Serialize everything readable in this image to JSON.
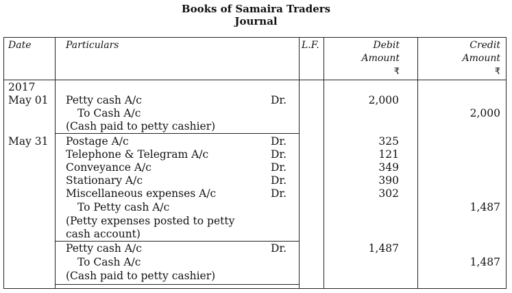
{
  "title": "Books of Samaira Traders",
  "subtitle": "Journal",
  "headers": {
    "date": "Date",
    "particulars": "Particulars",
    "lf": "L.F.",
    "debit_line1": "Debit",
    "debit_line2": "Amount",
    "credit_line1": "Credit",
    "credit_line2": "Amount",
    "currency": "₹"
  },
  "entries": [
    {
      "date_year": "2017",
      "date": "May 01",
      "lines": [
        {
          "text": "Petty cash A/c",
          "dr": "Dr.",
          "debit": "2,000",
          "credit": ""
        },
        {
          "text": "To Cash A/c",
          "dr": "",
          "debit": "",
          "credit": "2,000"
        },
        {
          "text": "(Cash paid to petty cashier)",
          "dr": "",
          "debit": "",
          "credit": ""
        }
      ]
    },
    {
      "date": "May 31",
      "lines": [
        {
          "text": "Postage A/c",
          "dr": "Dr.",
          "debit": "325",
          "credit": ""
        },
        {
          "text": "Telephone & Telegram A/c",
          "dr": "Dr.",
          "debit": "121",
          "credit": ""
        },
        {
          "text": "Conveyance A/c",
          "dr": "Dr.",
          "debit": "349",
          "credit": ""
        },
        {
          "text": "Stationary A/c",
          "dr": "Dr.",
          "debit": "390",
          "credit": ""
        },
        {
          "text": "Miscellaneous expenses A/c",
          "dr": "Dr.",
          "debit": "302",
          "credit": ""
        },
        {
          "text": "To Petty cash A/c",
          "dr": "",
          "debit": "",
          "credit": "1,487"
        },
        {
          "text": "(Petty expenses posted to petty",
          "dr": "",
          "debit": "",
          "credit": ""
        },
        {
          "text": "cash account)",
          "dr": "",
          "debit": "",
          "credit": ""
        }
      ]
    },
    {
      "date": "",
      "lines": [
        {
          "text": "Petty cash A/c",
          "dr": "Dr.",
          "debit": "1,487",
          "credit": ""
        },
        {
          "text": "To Cash A/c",
          "dr": "",
          "debit": "",
          "credit": "1,487"
        },
        {
          "text": "(Cash paid to petty cashier)",
          "dr": "",
          "debit": "",
          "credit": ""
        }
      ]
    }
  ]
}
